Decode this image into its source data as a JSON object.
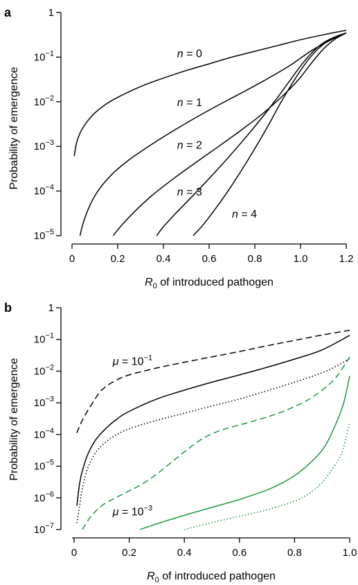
{
  "chart_data": [
    {
      "panel": "a",
      "type": "line",
      "xlabel": "R",
      "xlabel_sub": "0",
      "xlabel_rest": " of introduced pathogen",
      "ylabel": "Probability of emergence",
      "xlim": [
        0,
        1.2
      ],
      "ylim_log10": [
        -5,
        0
      ],
      "y_log": true,
      "grid": false,
      "x_ticks": [
        "0",
        "0.2",
        "0.4",
        "0.6",
        "0.8",
        "1.0",
        "1.2"
      ],
      "x_tick_values": [
        0,
        0.2,
        0.4,
        0.6,
        0.8,
        1.0,
        1.2
      ],
      "y_ticks": [
        {
          "base": "1",
          "exp": ""
        },
        {
          "base": "10",
          "exp": "−1"
        },
        {
          "base": "10",
          "exp": "−2"
        },
        {
          "base": "10",
          "exp": "−3"
        },
        {
          "base": "10",
          "exp": "−4"
        },
        {
          "base": "10",
          "exp": "−5"
        }
      ],
      "y_tick_log10": [
        0,
        -1,
        -2,
        -3,
        -4,
        -5
      ],
      "series": [
        {
          "name": "n = 0",
          "color": "#000000",
          "dash": "solid",
          "x": [
            0.01,
            0.02,
            0.04,
            0.07,
            0.1,
            0.15,
            0.2,
            0.3,
            0.4,
            0.5,
            0.6,
            0.7,
            0.8,
            0.9,
            1.0,
            1.1,
            1.2
          ],
          "log10y": [
            -3.22,
            -2.92,
            -2.65,
            -2.42,
            -2.25,
            -2.05,
            -1.9,
            -1.66,
            -1.47,
            -1.3,
            -1.15,
            -1.0,
            -0.87,
            -0.74,
            -0.61,
            -0.5,
            -0.4
          ]
        },
        {
          "name": "n = 1",
          "color": "#000000",
          "dash": "solid",
          "x": [
            0.035,
            0.05,
            0.08,
            0.12,
            0.18,
            0.25,
            0.35,
            0.45,
            0.55,
            0.65,
            0.75,
            0.85,
            0.95,
            1.05,
            1.15,
            1.2
          ],
          "log10y": [
            -5.0,
            -4.7,
            -4.3,
            -3.95,
            -3.6,
            -3.3,
            -2.95,
            -2.63,
            -2.33,
            -2.05,
            -1.78,
            -1.5,
            -1.2,
            -0.85,
            -0.57,
            -0.46
          ]
        },
        {
          "name": "n = 2",
          "color": "#000000",
          "dash": "solid",
          "x": [
            0.18,
            0.22,
            0.28,
            0.35,
            0.45,
            0.55,
            0.65,
            0.75,
            0.85,
            0.95,
            1.0,
            1.05,
            1.1,
            1.15,
            1.2
          ],
          "log10y": [
            -5.0,
            -4.75,
            -4.43,
            -4.1,
            -3.7,
            -3.33,
            -2.97,
            -2.6,
            -2.2,
            -1.73,
            -1.45,
            -1.12,
            -0.82,
            -0.6,
            -0.46
          ]
        },
        {
          "name": "n = 3",
          "color": "#000000",
          "dash": "solid",
          "x": [
            0.37,
            0.4,
            0.45,
            0.52,
            0.6,
            0.68,
            0.76,
            0.84,
            0.9,
            0.95,
            1.0,
            1.05,
            1.1,
            1.15,
            1.2
          ],
          "log10y": [
            -5.0,
            -4.8,
            -4.52,
            -4.15,
            -3.72,
            -3.27,
            -2.8,
            -2.3,
            -1.9,
            -1.55,
            -1.2,
            -0.9,
            -0.68,
            -0.55,
            -0.46
          ]
        },
        {
          "name": "n = 4",
          "color": "#000000",
          "dash": "solid",
          "x": [
            0.53,
            0.57,
            0.62,
            0.68,
            0.74,
            0.8,
            0.86,
            0.91,
            0.96,
            1.0,
            1.04,
            1.08,
            1.12,
            1.16,
            1.2
          ],
          "log10y": [
            -5.0,
            -4.78,
            -4.45,
            -4.02,
            -3.55,
            -3.05,
            -2.52,
            -2.05,
            -1.62,
            -1.3,
            -1.02,
            -0.8,
            -0.64,
            -0.53,
            -0.46
          ]
        }
      ],
      "annotations": [
        {
          "label": "n = 0",
          "x": 0.46,
          "log10y": -1.0
        },
        {
          "label": "n = 1",
          "x": 0.46,
          "log10y": -2.1
        },
        {
          "label": "n = 2",
          "x": 0.46,
          "log10y": -3.05
        },
        {
          "label": "n = 3",
          "x": 0.46,
          "log10y": -4.1
        },
        {
          "label": "n = 4",
          "x": 0.7,
          "log10y": -4.6
        }
      ]
    },
    {
      "panel": "b",
      "type": "line",
      "xlabel": "R",
      "xlabel_sub": "0",
      "xlabel_rest": " of introduced pathogen",
      "ylabel": "Probability of emergence",
      "xlim": [
        0,
        1.0
      ],
      "ylim_log10": [
        -7,
        0
      ],
      "y_log": true,
      "grid": false,
      "x_ticks": [
        "0",
        "0.2",
        "0.4",
        "0.6",
        "0.8",
        "1.0"
      ],
      "x_tick_values": [
        0,
        0.2,
        0.4,
        0.6,
        0.8,
        1.0
      ],
      "y_ticks": [
        {
          "base": "1",
          "exp": ""
        },
        {
          "base": "10",
          "exp": "−1"
        },
        {
          "base": "10",
          "exp": "−2"
        },
        {
          "base": "10",
          "exp": "−3"
        },
        {
          "base": "10",
          "exp": "−4"
        },
        {
          "base": "10",
          "exp": "−5"
        },
        {
          "base": "10",
          "exp": "−6"
        },
        {
          "base": "10",
          "exp": "−7"
        }
      ],
      "y_tick_log10": [
        0,
        -1,
        -2,
        -3,
        -4,
        -5,
        -6,
        -7
      ],
      "series": [
        {
          "color": "#000000",
          "dash": "dashed",
          "x": [
            0.01,
            0.03,
            0.06,
            0.1,
            0.15,
            0.2,
            0.3,
            0.4,
            0.5,
            0.6,
            0.7,
            0.8,
            0.9,
            1.0
          ],
          "log10y": [
            -3.95,
            -3.55,
            -3.1,
            -2.6,
            -2.3,
            -2.12,
            -1.9,
            -1.72,
            -1.55,
            -1.38,
            -1.2,
            -1.03,
            -0.86,
            -0.71
          ]
        },
        {
          "color": "#000000",
          "dash": "solid",
          "x": [
            0.01,
            0.02,
            0.03,
            0.05,
            0.08,
            0.12,
            0.16,
            0.2,
            0.3,
            0.4,
            0.5,
            0.6,
            0.7,
            0.8,
            0.9,
            1.0
          ],
          "log10y": [
            -6.25,
            -5.55,
            -5.15,
            -4.62,
            -4.15,
            -3.77,
            -3.48,
            -3.27,
            -2.88,
            -2.6,
            -2.35,
            -2.12,
            -1.88,
            -1.62,
            -1.33,
            -0.87
          ]
        },
        {
          "color": "#000000",
          "dash": "dotted",
          "x": [
            0.01,
            0.02,
            0.03,
            0.05,
            0.08,
            0.12,
            0.16,
            0.2,
            0.3,
            0.4,
            0.5,
            0.6,
            0.7,
            0.8,
            0.9,
            0.95,
            1.0
          ],
          "log10y": [
            -6.8,
            -6.25,
            -5.7,
            -5.05,
            -4.55,
            -4.2,
            -3.98,
            -3.82,
            -3.55,
            -3.33,
            -3.1,
            -2.88,
            -2.62,
            -2.35,
            -2.05,
            -1.85,
            -1.6
          ]
        },
        {
          "color": "#1a9a3c",
          "dash": "dashed",
          "x": [
            0.03,
            0.06,
            0.1,
            0.15,
            0.2,
            0.25,
            0.3,
            0.35,
            0.4,
            0.45,
            0.5,
            0.55,
            0.6,
            0.65,
            0.7,
            0.75,
            0.8,
            0.85,
            0.9,
            0.95,
            1.0
          ],
          "log10y": [
            -7.0,
            -6.6,
            -6.25,
            -6.0,
            -5.78,
            -5.55,
            -5.25,
            -4.9,
            -4.55,
            -4.22,
            -3.98,
            -3.82,
            -3.7,
            -3.58,
            -3.45,
            -3.3,
            -3.12,
            -2.9,
            -2.6,
            -2.2,
            -1.55
          ]
        },
        {
          "color": "#1a9a3c",
          "dash": "solid",
          "x": [
            0.24,
            0.3,
            0.4,
            0.5,
            0.6,
            0.7,
            0.75,
            0.8,
            0.85,
            0.9,
            0.93,
            0.96,
            0.98,
            1.0
          ],
          "log10y": [
            -7.0,
            -6.82,
            -6.55,
            -6.3,
            -6.05,
            -5.75,
            -5.55,
            -5.3,
            -4.95,
            -4.5,
            -4.05,
            -3.45,
            -2.95,
            -2.15
          ]
        },
        {
          "color": "#1a9a3c",
          "dash": "dotted",
          "x": [
            0.4,
            0.5,
            0.6,
            0.7,
            0.8,
            0.85,
            0.9,
            0.94,
            0.97,
            0.99,
            1.0
          ],
          "log10y": [
            -7.0,
            -6.78,
            -6.58,
            -6.38,
            -6.1,
            -5.88,
            -5.52,
            -5.05,
            -4.6,
            -4.0,
            -3.65
          ]
        }
      ],
      "annotations": [
        {
          "mu": "μ",
          "eq": " = 10",
          "exp": "−1",
          "x": 0.14,
          "log10y": -1.8
        },
        {
          "mu": "μ",
          "eq": " = 10",
          "exp": "−3",
          "x": 0.14,
          "log10y": -6.55
        }
      ]
    }
  ]
}
